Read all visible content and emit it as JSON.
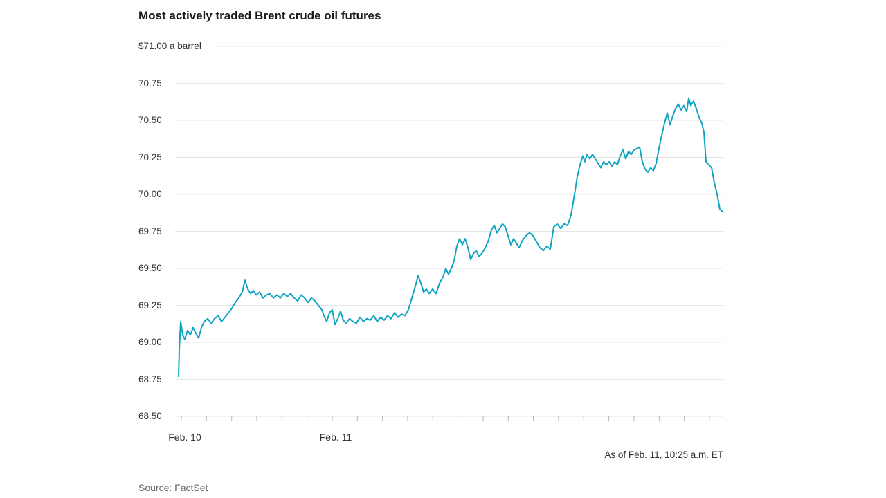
{
  "chart": {
    "title": "Most actively traded Brent crude oil futures",
    "as_of": "As of Feb. 11, 10:25 a.m. ET",
    "source": "Source: FactSet"
  },
  "chart_data": {
    "type": "line",
    "title": "Most actively traded Brent crude oil futures",
    "unit_label": "$71.00 a barrel",
    "ylim": [
      68.5,
      71.0
    ],
    "y_ticks": [
      71.0,
      70.75,
      70.5,
      70.25,
      70.0,
      69.75,
      69.5,
      69.25,
      69.0,
      68.75,
      68.5
    ],
    "y_tick_labels": [
      "$71.00 a barrel",
      "70.75",
      "70.50",
      "70.25",
      "70.00",
      "69.75",
      "69.50",
      "69.25",
      "69.00",
      "68.75",
      "68.50"
    ],
    "x_tick_labels": [
      {
        "label": "Feb. 10",
        "tick_index": 0
      },
      {
        "label": "Feb. 11",
        "tick_index": 6
      }
    ],
    "x_minor_tick_count": 22,
    "grid": true,
    "legend": "none",
    "line_color": "#0FA3C2",
    "grid_color": "#e4e4e4",
    "tick_color": "#b5b5b5",
    "series": [
      {
        "name": "Most actively traded Brent crude oil futures ($ a barrel)",
        "points": [
          [
            258,
            68.77
          ],
          [
            259,
            68.95
          ],
          [
            261,
            69.14
          ],
          [
            264,
            69.05
          ],
          [
            267,
            69.02
          ],
          [
            271,
            69.08
          ],
          [
            275,
            69.05
          ],
          [
            279,
            69.1
          ],
          [
            283,
            69.06
          ],
          [
            287,
            69.03
          ],
          [
            291,
            69.1
          ],
          [
            295,
            69.14
          ],
          [
            300,
            69.16
          ],
          [
            305,
            69.13
          ],
          [
            310,
            69.16
          ],
          [
            315,
            69.18
          ],
          [
            320,
            69.14
          ],
          [
            325,
            69.17
          ],
          [
            330,
            69.2
          ],
          [
            335,
            69.23
          ],
          [
            340,
            69.27
          ],
          [
            345,
            69.3
          ],
          [
            350,
            69.34
          ],
          [
            354,
            69.42
          ],
          [
            358,
            69.36
          ],
          [
            362,
            69.33
          ],
          [
            366,
            69.35
          ],
          [
            370,
            69.32
          ],
          [
            375,
            69.34
          ],
          [
            380,
            69.3
          ],
          [
            385,
            69.32
          ],
          [
            390,
            69.33
          ],
          [
            395,
            69.3
          ],
          [
            400,
            69.32
          ],
          [
            405,
            69.3
          ],
          [
            410,
            69.33
          ],
          [
            415,
            69.31
          ],
          [
            420,
            69.33
          ],
          [
            425,
            69.3
          ],
          [
            430,
            69.28
          ],
          [
            435,
            69.32
          ],
          [
            440,
            69.3
          ],
          [
            445,
            69.27
          ],
          [
            450,
            69.3
          ],
          [
            455,
            69.28
          ],
          [
            460,
            69.25
          ],
          [
            465,
            69.22
          ],
          [
            468,
            69.18
          ],
          [
            472,
            69.14
          ],
          [
            476,
            69.2
          ],
          [
            480,
            69.22
          ],
          [
            484,
            69.12
          ],
          [
            488,
            69.16
          ],
          [
            492,
            69.21
          ],
          [
            496,
            69.15
          ],
          [
            500,
            69.13
          ],
          [
            505,
            69.16
          ],
          [
            510,
            69.14
          ],
          [
            515,
            69.13
          ],
          [
            520,
            69.17
          ],
          [
            525,
            69.14
          ],
          [
            530,
            69.16
          ],
          [
            535,
            69.15
          ],
          [
            540,
            69.18
          ],
          [
            545,
            69.14
          ],
          [
            550,
            69.17
          ],
          [
            555,
            69.15
          ],
          [
            560,
            69.18
          ],
          [
            565,
            69.16
          ],
          [
            570,
            69.2
          ],
          [
            575,
            69.17
          ],
          [
            580,
            69.19
          ],
          [
            585,
            69.18
          ],
          [
            590,
            69.22
          ],
          [
            595,
            69.3
          ],
          [
            600,
            69.38
          ],
          [
            604,
            69.45
          ],
          [
            608,
            69.4
          ],
          [
            612,
            69.34
          ],
          [
            616,
            69.36
          ],
          [
            620,
            69.33
          ],
          [
            625,
            69.36
          ],
          [
            630,
            69.33
          ],
          [
            635,
            69.4
          ],
          [
            640,
            69.44
          ],
          [
            644,
            69.5
          ],
          [
            648,
            69.46
          ],
          [
            652,
            69.5
          ],
          [
            656,
            69.55
          ],
          [
            660,
            69.65
          ],
          [
            664,
            69.7
          ],
          [
            668,
            69.66
          ],
          [
            672,
            69.7
          ],
          [
            676,
            69.64
          ],
          [
            680,
            69.56
          ],
          [
            684,
            69.6
          ],
          [
            688,
            69.62
          ],
          [
            692,
            69.58
          ],
          [
            696,
            69.6
          ],
          [
            700,
            69.63
          ],
          [
            705,
            69.68
          ],
          [
            710,
            69.76
          ],
          [
            714,
            69.79
          ],
          [
            718,
            69.74
          ],
          [
            722,
            69.77
          ],
          [
            726,
            69.8
          ],
          [
            730,
            69.78
          ],
          [
            734,
            69.72
          ],
          [
            738,
            69.66
          ],
          [
            742,
            69.7
          ],
          [
            746,
            69.67
          ],
          [
            750,
            69.64
          ],
          [
            755,
            69.69
          ],
          [
            760,
            69.72
          ],
          [
            765,
            69.74
          ],
          [
            770,
            69.72
          ],
          [
            775,
            69.68
          ],
          [
            780,
            69.64
          ],
          [
            785,
            69.62
          ],
          [
            790,
            69.65
          ],
          [
            795,
            69.63
          ],
          [
            800,
            69.78
          ],
          [
            805,
            69.8
          ],
          [
            810,
            69.77
          ],
          [
            815,
            69.8
          ],
          [
            820,
            69.79
          ],
          [
            825,
            69.86
          ],
          [
            830,
            70.0
          ],
          [
            834,
            70.12
          ],
          [
            838,
            70.2
          ],
          [
            842,
            70.26
          ],
          [
            845,
            70.22
          ],
          [
            848,
            70.27
          ],
          [
            852,
            70.24
          ],
          [
            856,
            70.27
          ],
          [
            860,
            70.24
          ],
          [
            864,
            70.21
          ],
          [
            868,
            70.18
          ],
          [
            872,
            70.22
          ],
          [
            876,
            70.2
          ],
          [
            880,
            70.22
          ],
          [
            884,
            70.19
          ],
          [
            888,
            70.22
          ],
          [
            892,
            70.2
          ],
          [
            896,
            70.26
          ],
          [
            900,
            70.3
          ],
          [
            904,
            70.24
          ],
          [
            908,
            70.29
          ],
          [
            912,
            70.27
          ],
          [
            916,
            70.3
          ],
          [
            920,
            70.31
          ],
          [
            924,
            70.32
          ],
          [
            928,
            70.22
          ],
          [
            932,
            70.17
          ],
          [
            936,
            70.15
          ],
          [
            940,
            70.18
          ],
          [
            944,
            70.16
          ],
          [
            948,
            70.21
          ],
          [
            952,
            70.31
          ],
          [
            956,
            70.4
          ],
          [
            960,
            70.48
          ],
          [
            964,
            70.55
          ],
          [
            968,
            70.47
          ],
          [
            972,
            70.53
          ],
          [
            976,
            70.58
          ],
          [
            980,
            70.61
          ],
          [
            984,
            70.57
          ],
          [
            988,
            70.6
          ],
          [
            992,
            70.56
          ],
          [
            995,
            70.65
          ],
          [
            998,
            70.6
          ],
          [
            1002,
            70.63
          ],
          [
            1006,
            70.58
          ],
          [
            1010,
            70.52
          ],
          [
            1014,
            70.48
          ],
          [
            1017,
            70.42
          ],
          [
            1020,
            70.22
          ],
          [
            1024,
            70.2
          ],
          [
            1028,
            70.18
          ],
          [
            1032,
            70.08
          ],
          [
            1036,
            70.0
          ],
          [
            1040,
            69.9
          ],
          [
            1045,
            69.88
          ]
        ]
      }
    ]
  }
}
